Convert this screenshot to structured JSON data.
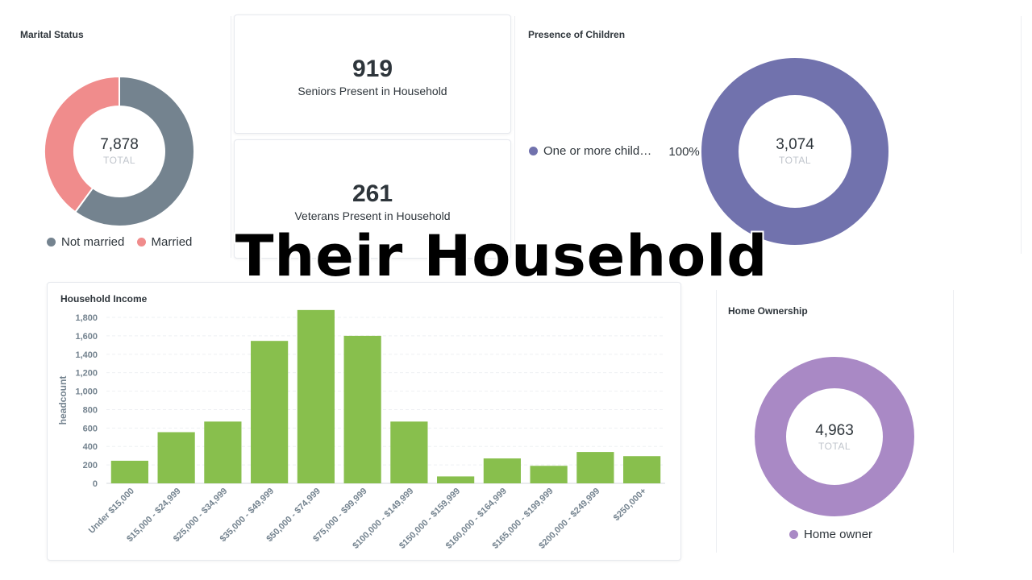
{
  "page_title": "Their Household",
  "colors": {
    "not_married": "#74838f",
    "married": "#f08c8c",
    "children": "#7172ad",
    "home_owner": "#a989c5",
    "bars": "#88bf4d"
  },
  "marital": {
    "title": "Marital Status",
    "total": "7,878",
    "total_label": "TOTAL",
    "legend": [
      "Not married",
      "Married"
    ]
  },
  "seniors": {
    "value": "919",
    "label": "Seniors Present in Household"
  },
  "veterans": {
    "value": "261",
    "label": "Veterans Present in Household"
  },
  "children": {
    "title": "Presence of Children",
    "total": "3,074",
    "total_label": "TOTAL",
    "legend_label": "One or more child…",
    "legend_pct": "100%"
  },
  "income": {
    "title": "Household Income"
  },
  "home": {
    "title": "Home Ownership",
    "total": "4,963",
    "total_label": "TOTAL",
    "legend": "Home owner"
  },
  "chart_data": [
    {
      "type": "pie",
      "title": "Marital Status",
      "categories": [
        "Not married",
        "Married"
      ],
      "values": [
        4727,
        3151
      ],
      "total": 7878,
      "donut": true
    },
    {
      "type": "pie",
      "title": "Presence of Children",
      "categories": [
        "One or more child…"
      ],
      "values": [
        3074
      ],
      "total": 3074,
      "donut": true
    },
    {
      "type": "bar",
      "title": "Household Income",
      "xlabel": "",
      "ylabel": "headcount",
      "ylim": [
        0,
        1800
      ],
      "yticks": [
        "0",
        "200",
        "400",
        "600",
        "800",
        "1,000",
        "1,200",
        "1,400",
        "1,600",
        "1,800"
      ],
      "grid": true,
      "categories": [
        "Under $15,000",
        "$15,000 - $24,999",
        "$25,000 - $34,999",
        "$35,000 - $49,999",
        "$50,000 - $74,999",
        "$75,000 - $99,999",
        "$100,000 - $149,999",
        "$150,000 - $159,999",
        "$160,000 - $164,999",
        "$165,000 - $199,999",
        "$200,000 - $249,999",
        "$250,000+"
      ],
      "values": [
        245,
        555,
        670,
        1545,
        1880,
        1600,
        670,
        75,
        270,
        190,
        340,
        295
      ]
    },
    {
      "type": "pie",
      "title": "Home Ownership",
      "categories": [
        "Home owner"
      ],
      "values": [
        4963
      ],
      "total": 4963,
      "donut": true
    }
  ]
}
